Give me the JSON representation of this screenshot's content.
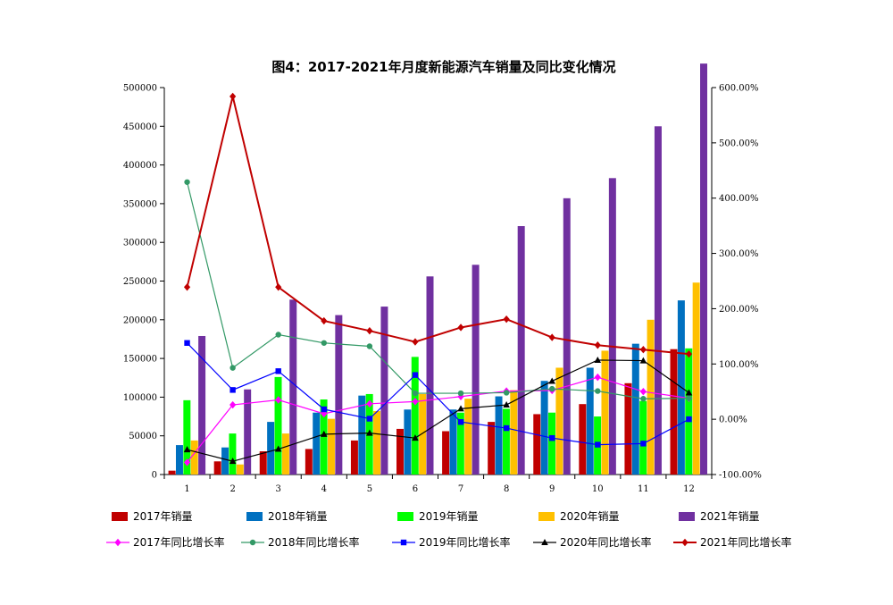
{
  "chart_data": {
    "type": "bar",
    "title": "图4：2017-2021年月度新能源汽车销量及同比变化情况",
    "categories": [
      "1",
      "2",
      "3",
      "4",
      "5",
      "6",
      "7",
      "8",
      "9",
      "10",
      "11",
      "12"
    ],
    "y_left": {
      "min": 0,
      "max": 500000,
      "step": 50000,
      "ticks": [
        "0",
        "50000",
        "100000",
        "150000",
        "200000",
        "250000",
        "300000",
        "350000",
        "400000",
        "450000",
        "500000"
      ]
    },
    "y_right": {
      "min": -100,
      "max": 600,
      "step": 100,
      "ticks": [
        "-100.00%",
        "0.00%",
        "100.00%",
        "200.00%",
        "300.00%",
        "400.00%",
        "500.00%",
        "600.00%"
      ]
    },
    "bar_series": [
      {
        "name": "2017年销量",
        "color": "#c00000",
        "values": [
          5000,
          17000,
          30000,
          33000,
          44000,
          59000,
          56000,
          68000,
          78000,
          91000,
          118000,
          162000
        ]
      },
      {
        "name": "2018年销量",
        "color": "#0070c0",
        "values": [
          38000,
          35000,
          68000,
          80000,
          102000,
          84000,
          84000,
          101000,
          121000,
          138000,
          169000,
          225000
        ]
      },
      {
        "name": "2019年销量",
        "color": "#00ff00",
        "values": [
          96000,
          53000,
          126000,
          97000,
          104000,
          152000,
          80000,
          85000,
          80000,
          75000,
          95000,
          163000
        ]
      },
      {
        "name": "2020年销量",
        "color": "#ffc000",
        "values": [
          44000,
          13000,
          53000,
          72000,
          82000,
          104000,
          98000,
          109000,
          138000,
          160000,
          200000,
          248000
        ]
      },
      {
        "name": "2021年销量",
        "color": "#7030a0",
        "values": [
          179000,
          110000,
          226000,
          206000,
          217000,
          256000,
          271000,
          321000,
          357000,
          383000,
          450000,
          531000
        ]
      }
    ],
    "line_series": [
      {
        "name": "2017年同比增长率",
        "color": "#ff00ff",
        "marker": "diamond",
        "values": [
          -78,
          26,
          35,
          10,
          28,
          32,
          41,
          51,
          52,
          76,
          50,
          38
        ]
      },
      {
        "name": "2018年同比增长率",
        "color": "#339966",
        "marker": "circle",
        "values": [
          429,
          93,
          153,
          138,
          132,
          47,
          47,
          48,
          55,
          51,
          37,
          38
        ]
      },
      {
        "name": "2019年同比增长率",
        "color": "#0000ff",
        "marker": "square",
        "values": [
          138,
          53,
          87,
          18,
          1,
          80,
          -5,
          -16,
          -34,
          -46,
          -44,
          0
        ]
      },
      {
        "name": "2020年同比增长率",
        "color": "#000000",
        "marker": "triangle",
        "values": [
          -55,
          -76,
          -54,
          -27,
          -25,
          -34,
          19,
          26,
          69,
          107,
          106,
          48
        ]
      },
      {
        "name": "2021年同比增长率",
        "color": "#c00000",
        "marker": "diamond",
        "values": [
          239,
          584,
          239,
          178,
          160,
          140,
          166,
          181,
          148,
          134,
          126,
          118
        ]
      }
    ],
    "legend_position": "bottom",
    "grid": false
  }
}
